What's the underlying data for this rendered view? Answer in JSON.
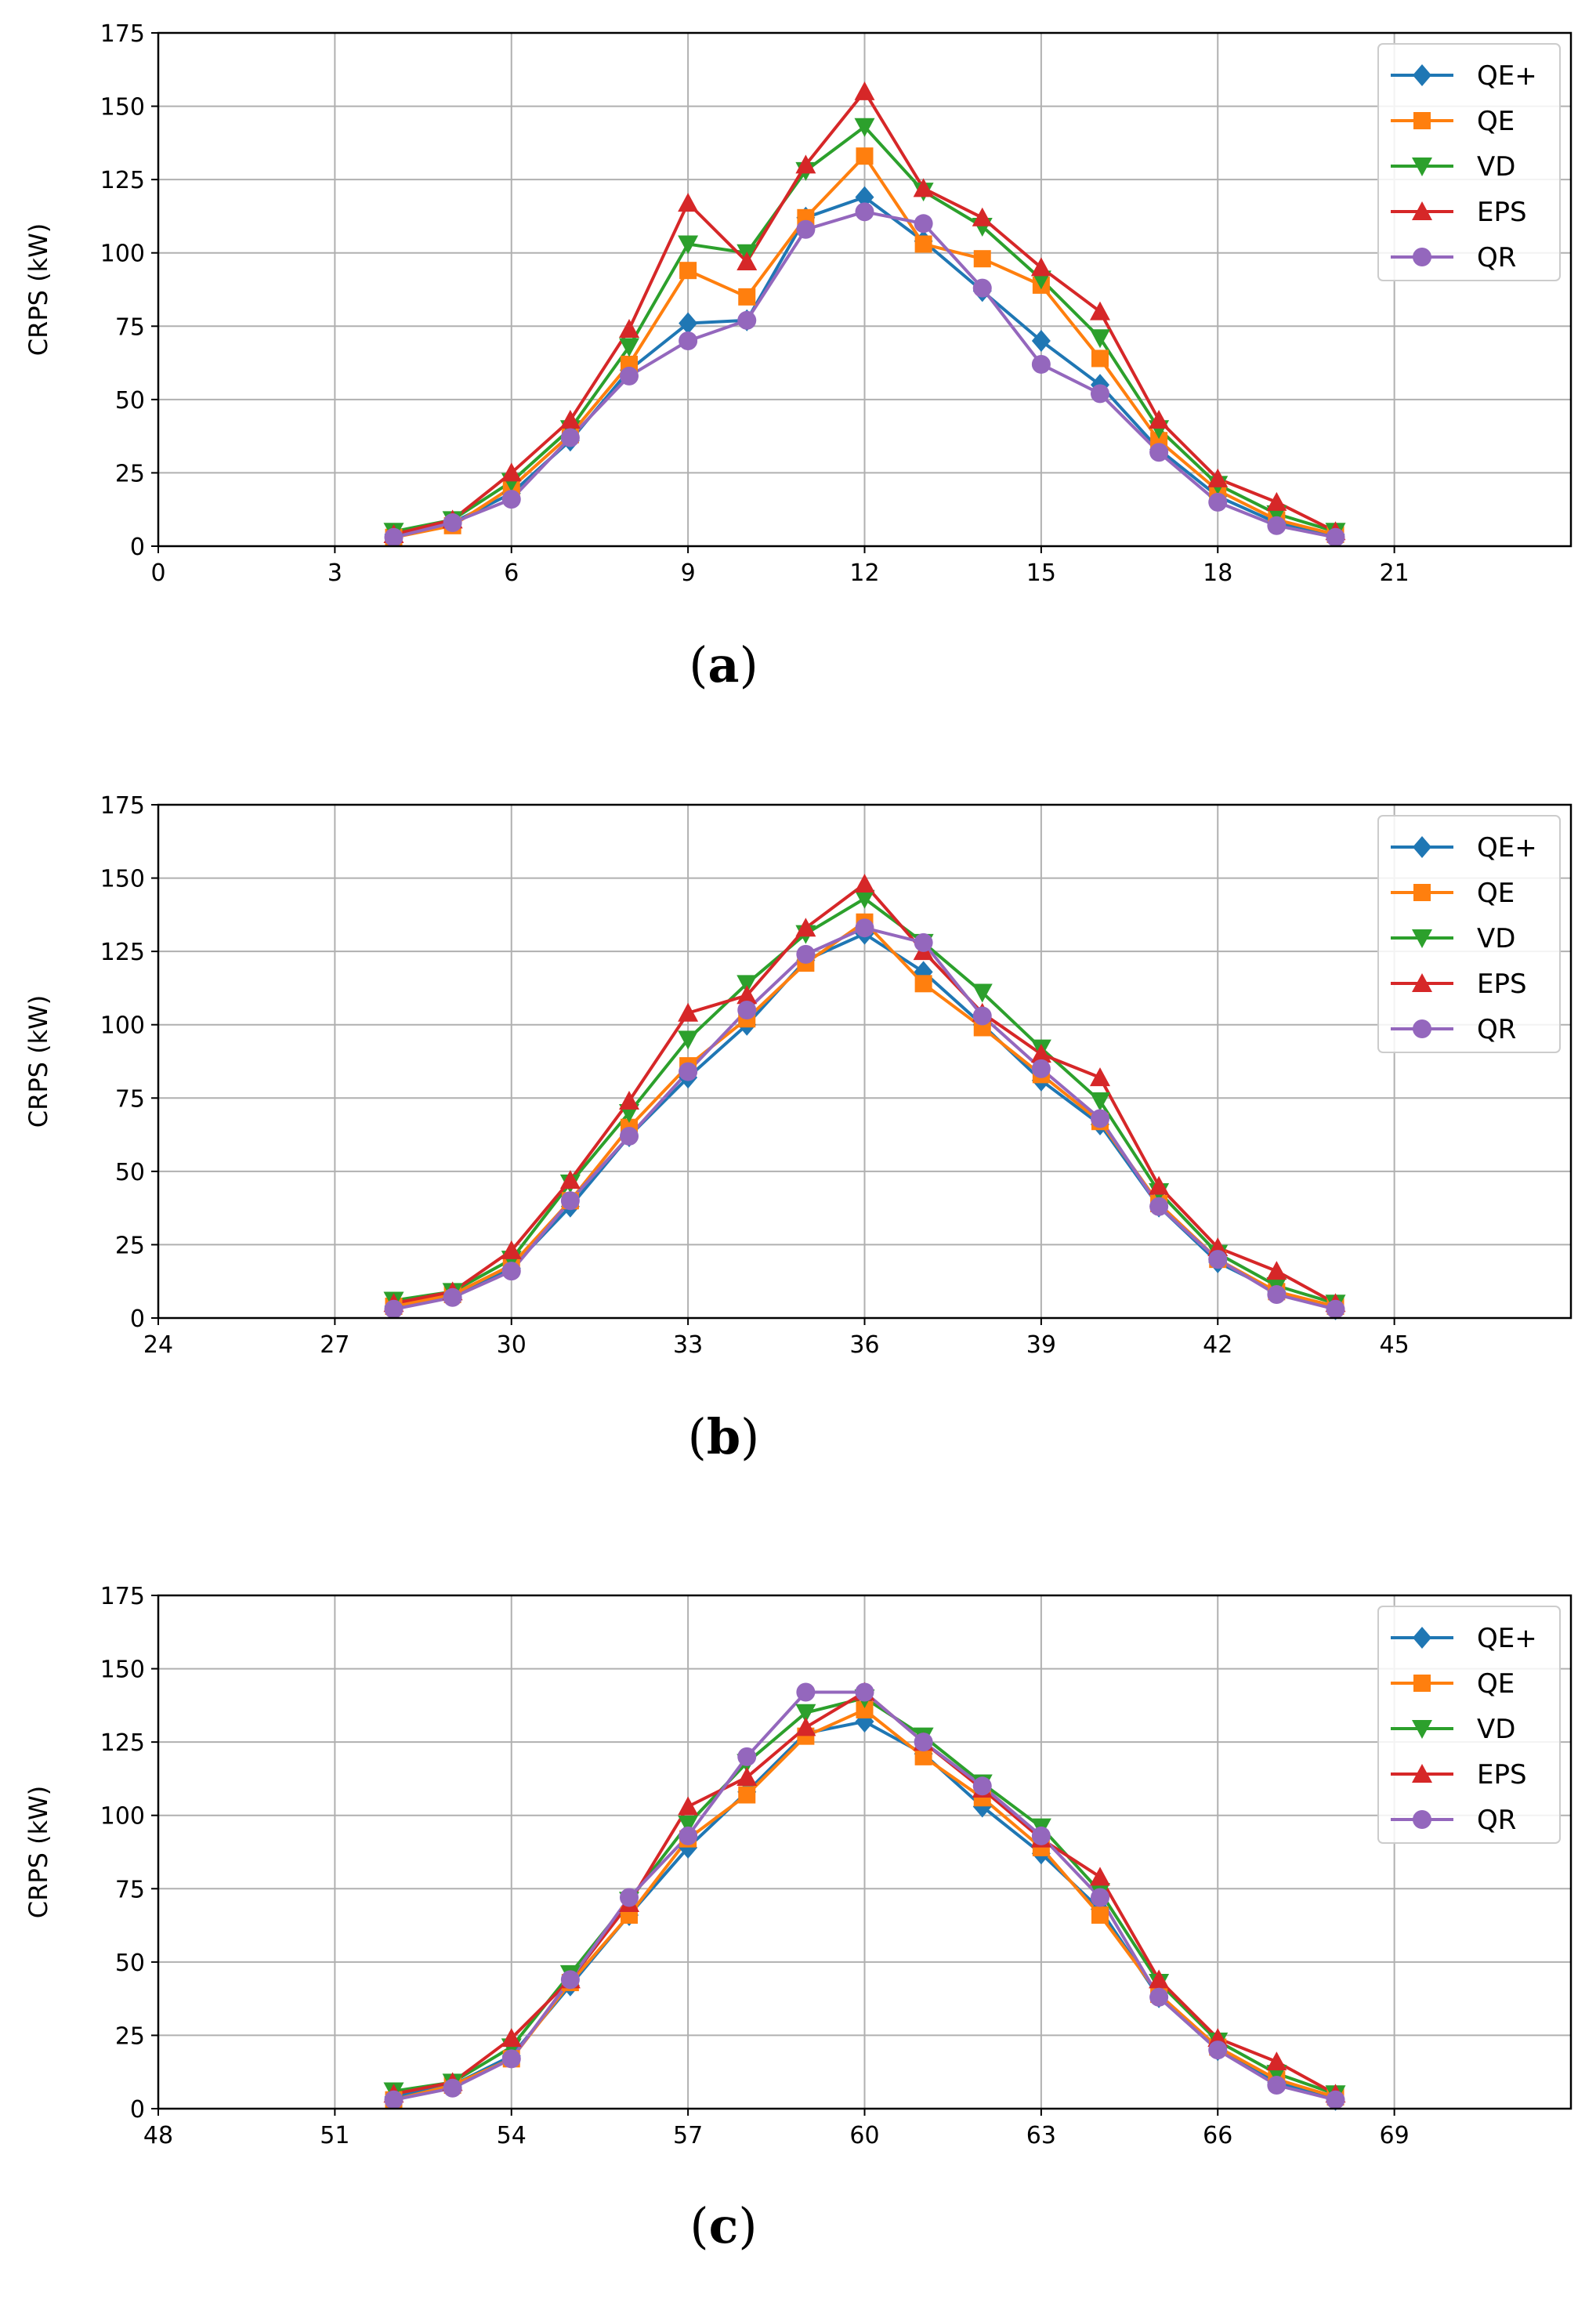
{
  "chart_data": [
    {
      "type": "line",
      "caption": {
        "open": "(",
        "letter": "a",
        "close": ")"
      },
      "title": "",
      "xlabel": "",
      "ylabel": "CRPS (kW)",
      "xlim": [
        0,
        24
      ],
      "ylim": [
        0,
        175
      ],
      "xticks": [
        0,
        3,
        6,
        9,
        12,
        15,
        18,
        21
      ],
      "yticks": [
        0,
        25,
        50,
        75,
        100,
        125,
        150,
        175
      ],
      "grid": true,
      "legend": "top-right",
      "x": [
        4,
        5,
        6,
        7,
        8,
        9,
        10,
        11,
        12,
        13,
        14,
        15,
        16,
        17,
        18,
        19,
        20
      ],
      "series": [
        {
          "name": "QE+",
          "color": "#1f77b4",
          "marker": "diamond",
          "values": [
            4,
            8,
            18,
            36,
            60,
            76,
            77,
            112,
            119,
            104,
            87,
            70,
            55,
            33,
            17,
            8,
            4
          ]
        },
        {
          "name": "QE",
          "color": "#ff7f0e",
          "marker": "square",
          "values": [
            3,
            7,
            20,
            38,
            62,
            94,
            85,
            112,
            133,
            103,
            98,
            89,
            64,
            36,
            19,
            9,
            4
          ]
        },
        {
          "name": "VD",
          "color": "#2ca02c",
          "marker": "triangle-down",
          "values": [
            5,
            9,
            22,
            40,
            68,
            103,
            100,
            128,
            143,
            121,
            109,
            91,
            71,
            40,
            21,
            11,
            5
          ]
        },
        {
          "name": "EPS",
          "color": "#d62728",
          "marker": "triangle-up",
          "values": [
            4,
            9,
            25,
            43,
            74,
            117,
            97,
            130,
            155,
            122,
            112,
            95,
            80,
            43,
            23,
            15,
            5
          ]
        },
        {
          "name": "QR",
          "color": "#9467bd",
          "marker": "circle",
          "values": [
            3,
            8,
            16,
            37,
            58,
            70,
            77,
            108,
            114,
            110,
            88,
            62,
            52,
            32,
            15,
            7,
            3
          ]
        }
      ]
    },
    {
      "type": "line",
      "caption": {
        "open": "(",
        "letter": "b",
        "close": ")"
      },
      "title": "",
      "xlabel": "",
      "ylabel": "CRPS (kW)",
      "xlim": [
        24,
        48
      ],
      "ylim": [
        0,
        175
      ],
      "xticks": [
        24,
        27,
        30,
        33,
        36,
        39,
        42,
        45
      ],
      "yticks": [
        0,
        25,
        50,
        75,
        100,
        125,
        150,
        175
      ],
      "grid": true,
      "legend": "top-right",
      "x": [
        28,
        29,
        30,
        31,
        32,
        33,
        34,
        35,
        36,
        37,
        38,
        39,
        40,
        41,
        42,
        43,
        44
      ],
      "series": [
        {
          "name": "QE+",
          "color": "#1f77b4",
          "marker": "diamond",
          "values": [
            4,
            8,
            17,
            38,
            62,
            82,
            100,
            122,
            131,
            118,
            100,
            81,
            66,
            38,
            19,
            9,
            3
          ]
        },
        {
          "name": "QE",
          "color": "#ff7f0e",
          "marker": "square",
          "values": [
            4,
            8,
            18,
            40,
            65,
            86,
            102,
            121,
            135,
            114,
            99,
            83,
            67,
            39,
            20,
            9,
            4
          ]
        },
        {
          "name": "VD",
          "color": "#2ca02c",
          "marker": "triangle-down",
          "values": [
            6,
            9,
            20,
            46,
            70,
            95,
            114,
            131,
            143,
            128,
            111,
            92,
            74,
            43,
            22,
            11,
            5
          ]
        },
        {
          "name": "EPS",
          "color": "#d62728",
          "marker": "triangle-up",
          "values": [
            5,
            9,
            23,
            47,
            74,
            104,
            110,
            133,
            148,
            125,
            104,
            90,
            82,
            45,
            24,
            16,
            5
          ]
        },
        {
          "name": "QR",
          "color": "#9467bd",
          "marker": "circle",
          "values": [
            3,
            7,
            16,
            40,
            62,
            84,
            105,
            124,
            133,
            128,
            103,
            85,
            68,
            38,
            20,
            8,
            3
          ]
        }
      ]
    },
    {
      "type": "line",
      "caption": {
        "open": "(",
        "letter": "c",
        "close": ")"
      },
      "title": "",
      "xlabel": "",
      "ylabel": "CRPS (kW)",
      "xlim": [
        48,
        72
      ],
      "ylim": [
        0,
        175
      ],
      "xticks": [
        48,
        51,
        54,
        57,
        60,
        63,
        66,
        69
      ],
      "yticks": [
        0,
        25,
        50,
        75,
        100,
        125,
        150,
        175
      ],
      "grid": true,
      "legend": "top-right",
      "x": [
        52,
        53,
        54,
        55,
        56,
        57,
        58,
        59,
        60,
        61,
        62,
        63,
        64,
        65,
        66,
        67,
        68
      ],
      "series": [
        {
          "name": "QE+",
          "color": "#1f77b4",
          "marker": "diamond",
          "values": [
            4,
            8,
            18,
            42,
            66,
            89,
            108,
            128,
            132,
            121,
            103,
            87,
            68,
            38,
            20,
            9,
            3
          ]
        },
        {
          "name": "QE",
          "color": "#ff7f0e",
          "marker": "square",
          "values": [
            3,
            8,
            17,
            43,
            66,
            92,
            107,
            127,
            136,
            120,
            106,
            89,
            66,
            39,
            21,
            10,
            4
          ]
        },
        {
          "name": "VD",
          "color": "#2ca02c",
          "marker": "triangle-down",
          "values": [
            6,
            9,
            21,
            46,
            71,
            97,
            118,
            135,
            140,
            127,
            111,
            96,
            74,
            43,
            23,
            12,
            5
          ]
        },
        {
          "name": "EPS",
          "color": "#d62728",
          "marker": "triangle-up",
          "values": [
            5,
            9,
            24,
            44,
            70,
            103,
            113,
            130,
            142,
            125,
            109,
            92,
            79,
            44,
            24,
            16,
            5
          ]
        },
        {
          "name": "QR",
          "color": "#9467bd",
          "marker": "circle",
          "values": [
            3,
            7,
            17,
            44,
            72,
            93,
            120,
            142,
            142,
            125,
            110,
            93,
            72,
            38,
            20,
            8,
            3
          ]
        }
      ]
    }
  ]
}
